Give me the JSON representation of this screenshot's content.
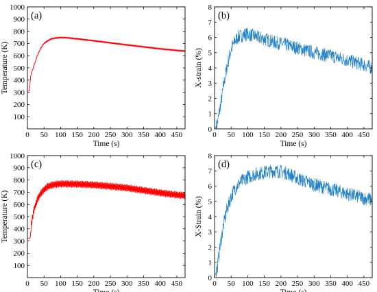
{
  "chart_data": [
    {
      "panel": "(a)",
      "type": "line",
      "color": "#ff0000",
      "xlabel": "Time (s)",
      "ylabel": "Temperature (K)",
      "xlim": [
        0,
        475
      ],
      "ylim": [
        0,
        1000
      ],
      "xticks": [
        0,
        50,
        100,
        150,
        200,
        250,
        300,
        350,
        400,
        450
      ],
      "yticks": [
        100,
        200,
        300,
        400,
        500,
        600,
        700,
        800,
        900,
        1000
      ],
      "series": [
        {
          "x": [
            0,
            6,
            10,
            20,
            30,
            40,
            50,
            60,
            70,
            80,
            90,
            100,
            110,
            120,
            130,
            150,
            175,
            200,
            250,
            300,
            350,
            400,
            450,
            475
          ],
          "values": [
            310,
            310,
            440,
            520,
            600,
            660,
            700,
            720,
            735,
            742,
            746,
            748,
            748,
            746,
            744,
            738,
            730,
            722,
            705,
            688,
            672,
            656,
            643,
            637
          ],
          "oscillation": 6
        }
      ]
    },
    {
      "panel": "(b)",
      "type": "line",
      "color": "#1f80c8",
      "xlabel": "Time (s)",
      "ylabel": "X-strain (%)",
      "xlim": [
        0,
        475
      ],
      "ylim": [
        0,
        8
      ],
      "xticks": [
        0,
        50,
        100,
        150,
        200,
        250,
        300,
        350,
        400,
        450
      ],
      "yticks": [
        0,
        1,
        2,
        3,
        4,
        5,
        6,
        7,
        8
      ],
      "series": [
        {
          "x": [
            0,
            8,
            20,
            30,
            40,
            50,
            60,
            70,
            80,
            90,
            100,
            110,
            120,
            130,
            150,
            175,
            200,
            250,
            300,
            350,
            400,
            450,
            475
          ],
          "values": [
            0,
            0.3,
            1.8,
            3.2,
            4.3,
            5.2,
            5.7,
            6.0,
            6.1,
            6.2,
            6.2,
            6.15,
            6.1,
            6.0,
            5.9,
            5.7,
            5.6,
            5.3,
            5.0,
            4.8,
            4.5,
            4.2,
            4.0
          ],
          "noise": 0.45
        }
      ]
    },
    {
      "panel": "(c)",
      "type": "line",
      "color": "#ff0000",
      "xlabel": "Time (s)",
      "ylabel": "Temperature (K)",
      "xlim": [
        0,
        475
      ],
      "ylim": [
        0,
        1000
      ],
      "xticks": [
        0,
        50,
        100,
        150,
        200,
        250,
        300,
        350,
        400,
        450
      ],
      "yticks": [
        100,
        200,
        300,
        400,
        500,
        600,
        700,
        800,
        900,
        1000
      ],
      "series": [
        {
          "x": [
            0,
            8,
            12,
            20,
            30,
            40,
            50,
            60,
            70,
            80,
            90,
            100,
            120,
            150,
            200,
            250,
            300,
            350,
            400,
            450,
            475
          ],
          "values": [
            320,
            320,
            440,
            560,
            640,
            690,
            720,
            745,
            755,
            762,
            766,
            768,
            768,
            766,
            760,
            748,
            735,
            715,
            695,
            678,
            672
          ],
          "oscillation": 28
        }
      ]
    },
    {
      "panel": "(d)",
      "type": "line",
      "color": "#1f80c8",
      "xlabel": "Time (s)",
      "ylabel": "X-Strain (%)",
      "xlim": [
        0,
        475
      ],
      "ylim": [
        0,
        8
      ],
      "xticks": [
        0,
        50,
        100,
        150,
        200,
        250,
        300,
        350,
        400,
        450
      ],
      "yticks": [
        0,
        1,
        2,
        3,
        4,
        5,
        6,
        7,
        8
      ],
      "series": [
        {
          "x": [
            0,
            8,
            15,
            25,
            35,
            50,
            60,
            75,
            100,
            125,
            150,
            175,
            200,
            225,
            250,
            300,
            350,
            400,
            450,
            475
          ],
          "values": [
            0,
            0.6,
            1.8,
            3.2,
            4.3,
            5.3,
            5.8,
            6.2,
            6.6,
            6.8,
            6.9,
            7.0,
            6.95,
            6.8,
            6.5,
            6.1,
            5.8,
            5.5,
            5.2,
            5.1
          ],
          "noise": 0.45
        }
      ]
    }
  ]
}
